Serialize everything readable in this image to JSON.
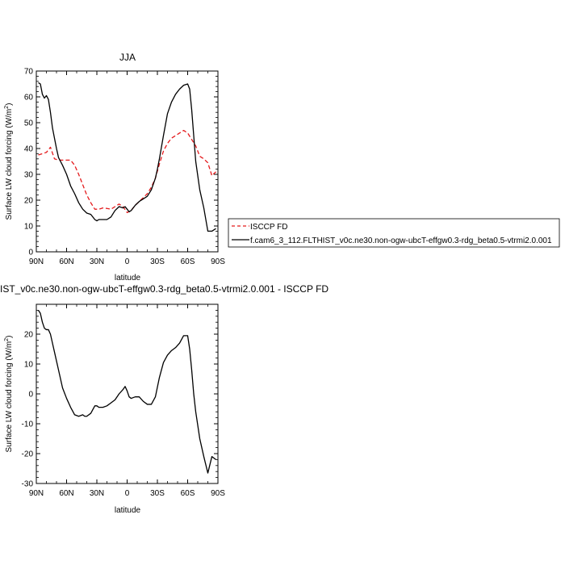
{
  "chart_data": [
    {
      "type": "line",
      "title": "JJA",
      "xlabel": "latitude",
      "ylabel": "Surface LW cloud forcing (W/m²)",
      "ylabel_main": "Surface LW cloud forcing (W/m",
      "ylabel_sup": "2",
      "ylabel_tail": ")",
      "xlim": [
        90,
        -90
      ],
      "ylim": [
        0,
        70
      ],
      "x_ticks": [
        90,
        60,
        30,
        0,
        -30,
        -60,
        -90
      ],
      "x_tick_labels": [
        "90N",
        "60N",
        "30N",
        "0",
        "30S",
        "60S",
        "90S"
      ],
      "y_ticks": [
        0,
        10,
        20,
        30,
        40,
        50,
        60,
        70
      ],
      "y_tick_labels": [
        "0",
        "10",
        "20",
        "30",
        "40",
        "50",
        "60",
        "70"
      ],
      "legend_position": "right",
      "series": [
        {
          "name": "ISCCP FD",
          "color": "#e41a1c",
          "dash": "dashed",
          "x": [
            88,
            84,
            80,
            76,
            72,
            68,
            64,
            60,
            56,
            52,
            48,
            44,
            40,
            36,
            32,
            28,
            24,
            20,
            16,
            12,
            8,
            4,
            0,
            -4,
            -8,
            -12,
            -16,
            -20,
            -24,
            -28,
            -32,
            -36,
            -40,
            -44,
            -48,
            -52,
            -56,
            -60,
            -64,
            -68,
            -72,
            -76,
            -80,
            -84,
            -88
          ],
          "y": [
            37.5,
            38,
            38.5,
            40.5,
            36,
            35.5,
            35.5,
            35.5,
            35.5,
            33.5,
            30,
            26,
            22,
            19,
            16.5,
            16.5,
            17,
            16.8,
            16.5,
            17.5,
            18.5,
            17.5,
            15.2,
            16,
            18,
            19.5,
            21,
            22.5,
            25,
            28.5,
            34,
            39,
            42,
            44,
            45,
            46,
            47,
            46,
            43.5,
            41,
            37,
            36,
            34.5,
            29.5,
            31
          ]
        },
        {
          "name": "f.cam6_3_112.FLTHIST_v0c.ne30.non-ogw-ubcT-effgw0.3-rdg_beta0.5-vtrmi2.0.001",
          "color": "#000000",
          "dash": "solid",
          "x": [
            88,
            86,
            84,
            82,
            80,
            78,
            76,
            74,
            72,
            70,
            68,
            64,
            60,
            56,
            52,
            48,
            44,
            40,
            36,
            32,
            30,
            28,
            24,
            20,
            16,
            12,
            8,
            4,
            2,
            0,
            -2,
            -4,
            -8,
            -12,
            -16,
            -20,
            -24,
            -28,
            -30,
            -32,
            -36,
            -40,
            -44,
            -48,
            -52,
            -56,
            -60,
            -62,
            -64,
            -66,
            -68,
            -72,
            -76,
            -80,
            -84,
            -88
          ],
          "y": [
            65.5,
            65,
            61,
            59.5,
            60.5,
            59,
            54,
            48,
            44,
            40,
            36.5,
            33.5,
            30,
            25.5,
            22.5,
            19,
            16.5,
            15,
            14.5,
            12.5,
            12,
            12.5,
            12.5,
            12.5,
            13.5,
            16,
            17.5,
            17,
            17.5,
            16.5,
            15.5,
            16,
            18,
            19.5,
            20.5,
            21.5,
            24,
            28.5,
            32,
            36,
            45,
            53.5,
            58,
            61,
            63,
            64.5,
            65,
            63,
            55,
            45,
            35,
            24,
            17,
            8,
            8,
            9
          ]
        }
      ]
    },
    {
      "type": "line",
      "title": "IST_v0c.ne30.non-ogw-ubcT-effgw0.3-rdg_beta0.5-vtrmi2.0.001 - ISCCP FD",
      "xlabel": "latitude",
      "ylabel": "Surface LW cloud forcing (W/m²)",
      "ylabel_main": "Surface LW cloud forcing (W/m",
      "ylabel_sup": "2",
      "ylabel_tail": ")",
      "xlim": [
        90,
        -90
      ],
      "ylim": [
        -30,
        30
      ],
      "x_ticks": [
        90,
        60,
        30,
        0,
        -30,
        -60,
        -90
      ],
      "x_tick_labels": [
        "90N",
        "60N",
        "30N",
        "0",
        "30S",
        "60S",
        "90S"
      ],
      "y_ticks": [
        -30,
        -20,
        -10,
        0,
        10,
        20
      ],
      "y_tick_labels": [
        "-30",
        "-20",
        "-10",
        "0",
        "10",
        "20"
      ],
      "series": [
        {
          "color": "#000000",
          "dash": "solid",
          "x": [
            88,
            86,
            84,
            82,
            80,
            78,
            76,
            74,
            72,
            68,
            64,
            60,
            56,
            52,
            48,
            44,
            42,
            40,
            36,
            32,
            30,
            28,
            24,
            20,
            16,
            12,
            8,
            4,
            2,
            0,
            -2,
            -4,
            -8,
            -12,
            -16,
            -20,
            -24,
            -28,
            -32,
            -36,
            -40,
            -44,
            -48,
            -52,
            -56,
            -58,
            -60,
            -62,
            -64,
            -66,
            -68,
            -72,
            -76,
            -80,
            -84,
            -88
          ],
          "y": [
            28,
            27,
            24,
            22,
            21.5,
            21.5,
            20,
            17,
            14,
            8,
            2,
            -1.5,
            -4.5,
            -7,
            -7.5,
            -7,
            -7.5,
            -7.5,
            -6.5,
            -4,
            -4,
            -4.5,
            -4.5,
            -4,
            -3,
            -2,
            0,
            1.5,
            2.5,
            1,
            -1,
            -1.5,
            -1,
            -1,
            -2.5,
            -3.5,
            -3.5,
            -1,
            5.5,
            10.5,
            13,
            14.5,
            15.5,
            17,
            19.5,
            19.5,
            19.5,
            15,
            8,
            0,
            -6,
            -15,
            -21,
            -26.5,
            -21,
            -22
          ]
        }
      ]
    }
  ]
}
